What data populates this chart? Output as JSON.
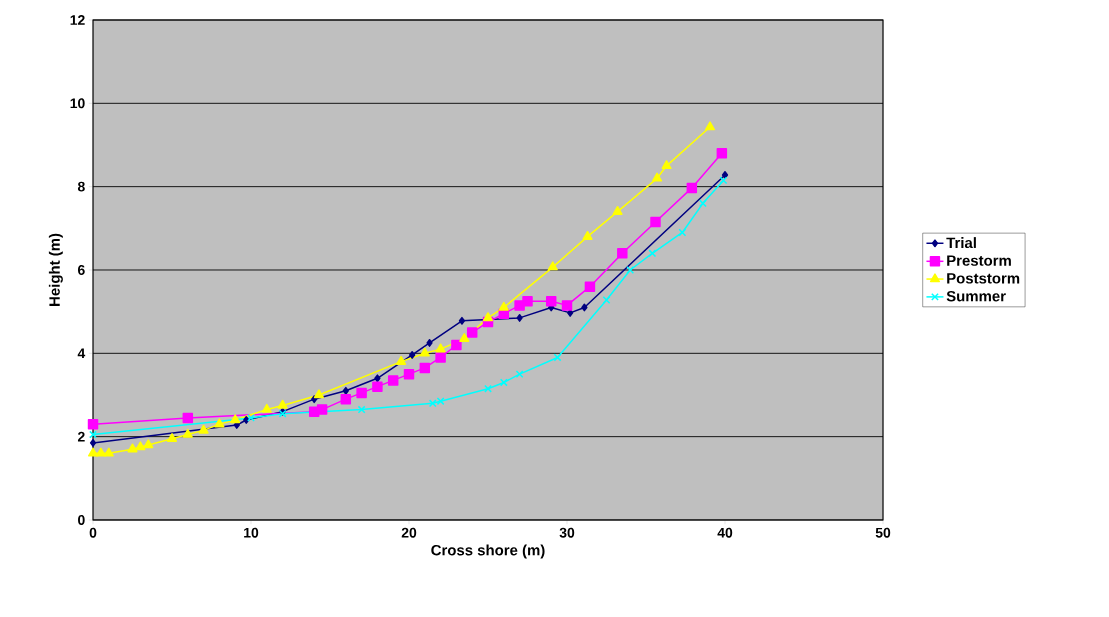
{
  "chart_data": {
    "type": "line",
    "xlabel": "Cross shore (m)",
    "ylabel": "Height (m)",
    "xlim": [
      0,
      50
    ],
    "xticks": [
      0,
      10,
      20,
      30,
      40,
      50
    ],
    "ylim": [
      0,
      12
    ],
    "yticks": [
      0,
      2,
      4,
      6,
      8,
      10,
      12
    ],
    "grid": "y",
    "legend": "right",
    "line_style": "solid",
    "series": [
      {
        "name": "Trial",
        "color": "#000080",
        "marker": "diamond",
        "x": [
          0,
          9.1,
          9.7,
          12,
          14,
          16,
          18,
          20.2,
          21.3,
          23.35,
          27,
          29,
          30.2,
          31.1,
          40
        ],
        "values": [
          1.85,
          2.28,
          2.4,
          2.6,
          2.9,
          3.1,
          3.4,
          3.96,
          4.25,
          4.78,
          4.85,
          5.1,
          4.97,
          5.1,
          8.28
        ]
      },
      {
        "name": "Prestorm",
        "color": "#ff00ff",
        "marker": "square",
        "x": [
          0,
          6,
          14,
          14.5,
          16,
          17,
          18,
          19,
          20,
          21,
          22,
          23,
          24,
          25,
          26,
          27,
          27.5,
          29,
          30,
          31.45,
          33.5,
          35.6,
          37.9,
          39.8
        ],
        "values": [
          2.3,
          2.45,
          2.6,
          2.65,
          2.9,
          3.05,
          3.2,
          3.35,
          3.5,
          3.65,
          3.9,
          4.2,
          4.5,
          4.75,
          4.95,
          5.15,
          5.25,
          5.25,
          5.15,
          5.6,
          6.4,
          7.15,
          7.97,
          8.8
        ]
      },
      {
        "name": "Poststorm",
        "color": "#ffff00",
        "marker": "triangle",
        "x": [
          0,
          0.5,
          1,
          2.5,
          3,
          3.5,
          5,
          6,
          7,
          8,
          9,
          11,
          12,
          14.3,
          19.5,
          21,
          22,
          23.5,
          25,
          26,
          29.1,
          31.3,
          33.2,
          35.7,
          36.3,
          39.05
        ],
        "values": [
          1.6,
          1.6,
          1.6,
          1.7,
          1.75,
          1.8,
          1.95,
          2.05,
          2.15,
          2.3,
          2.4,
          2.65,
          2.75,
          3.0,
          3.8,
          4.0,
          4.1,
          4.35,
          4.85,
          5.1,
          6.07,
          6.8,
          7.4,
          8.2,
          8.5,
          9.43
        ]
      },
      {
        "name": "Summer",
        "color": "#00ffff",
        "marker": "cross",
        "x": [
          0,
          10,
          12,
          17,
          21.5,
          22,
          25,
          26,
          27,
          29.4,
          32.5,
          34,
          35.4,
          37.3,
          38.6,
          39.9
        ],
        "values": [
          2.05,
          2.45,
          2.55,
          2.65,
          2.8,
          2.85,
          3.15,
          3.3,
          3.5,
          3.9,
          5.28,
          6.0,
          6.4,
          6.9,
          7.6,
          8.15
        ]
      }
    ]
  }
}
